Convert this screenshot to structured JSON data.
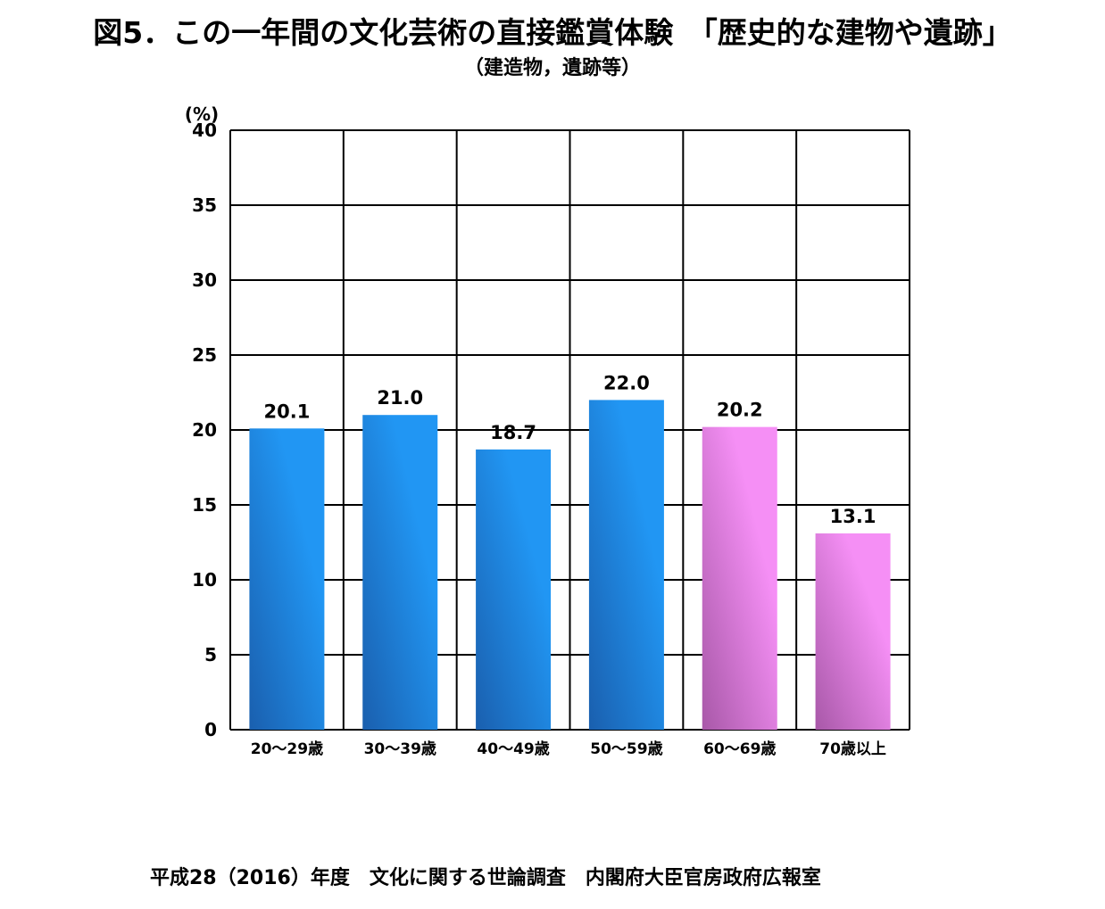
{
  "header": {
    "title": "図5．この一年間の文化芸術の直接鑑賞体験　「歴史的な建物や遺跡」",
    "subtitle": "（建造物，遺跡等）"
  },
  "footer": {
    "source": "平成28（2016）年度　文化に関する世論調査　内閣府大臣官房政府広報室"
  },
  "chart_data": {
    "type": "bar",
    "title": "",
    "xlabel": "",
    "ylabel": "(%)",
    "categories": [
      "20～29歳",
      "30～39歳",
      "40～49歳",
      "50～59歳",
      "60～69歳",
      "70歳以上"
    ],
    "values": [
      20.1,
      21.0,
      18.7,
      22.0,
      20.2,
      13.1
    ],
    "value_labels": [
      "20.1",
      "21.0",
      "18.7",
      "22.0",
      "20.2",
      "13.1"
    ],
    "ylim": [
      0,
      40
    ],
    "yticks": [
      0,
      5,
      10,
      15,
      20,
      25,
      30,
      35,
      40
    ],
    "grid": true,
    "legend": "none",
    "bar_colors": [
      "#1e88e5",
      "#1e88e5",
      "#1e88e5",
      "#1e88e5",
      "#ee82ee",
      "#ee82ee"
    ],
    "bar_gradients": [
      [
        "#1a5fae",
        "#2196f3"
      ],
      [
        "#1a5fae",
        "#2196f3"
      ],
      [
        "#1a5fae",
        "#2196f3"
      ],
      [
        "#1a5fae",
        "#2196f3"
      ],
      [
        "#a858a8",
        "#f58ff5"
      ],
      [
        "#a858a8",
        "#f58ff5"
      ]
    ],
    "grid_color": "#000000"
  }
}
